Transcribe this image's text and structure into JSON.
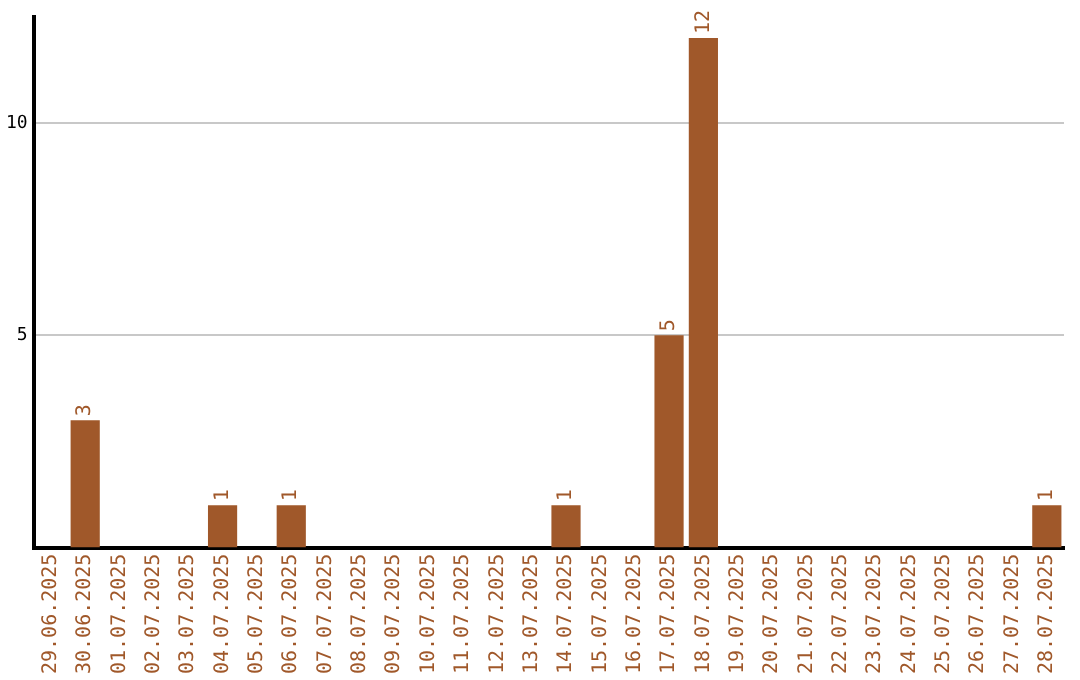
{
  "chart_data": {
    "type": "bar",
    "categories": [
      "29.06.2025",
      "30.06.2025",
      "01.07.2025",
      "02.07.2025",
      "03.07.2025",
      "04.07.2025",
      "05.07.2025",
      "06.07.2025",
      "07.07.2025",
      "08.07.2025",
      "09.07.2025",
      "10.07.2025",
      "11.07.2025",
      "12.07.2025",
      "13.07.2025",
      "14.07.2025",
      "15.07.2025",
      "16.07.2025",
      "17.07.2025",
      "18.07.2025",
      "19.07.2025",
      "20.07.2025",
      "21.07.2025",
      "22.07.2025",
      "23.07.2025",
      "24.07.2025",
      "25.07.2025",
      "26.07.2025",
      "27.07.2025",
      "28.07.2025"
    ],
    "values": [
      0,
      3,
      0,
      0,
      0,
      1,
      0,
      1,
      0,
      0,
      0,
      0,
      0,
      0,
      0,
      1,
      0,
      0,
      5,
      12,
      0,
      0,
      0,
      0,
      0,
      0,
      0,
      0,
      0,
      1
    ],
    "value_labels": [
      null,
      "3",
      null,
      null,
      null,
      "1",
      null,
      "1",
      null,
      null,
      null,
      null,
      null,
      null,
      null,
      "1",
      null,
      null,
      "5",
      "12",
      null,
      null,
      null,
      null,
      null,
      null,
      null,
      null,
      null,
      "1"
    ],
    "color": "#a0582a",
    "ylim": [
      0,
      12.5
    ],
    "yticks": [
      5,
      10
    ],
    "grid": "y",
    "legend": false
  }
}
